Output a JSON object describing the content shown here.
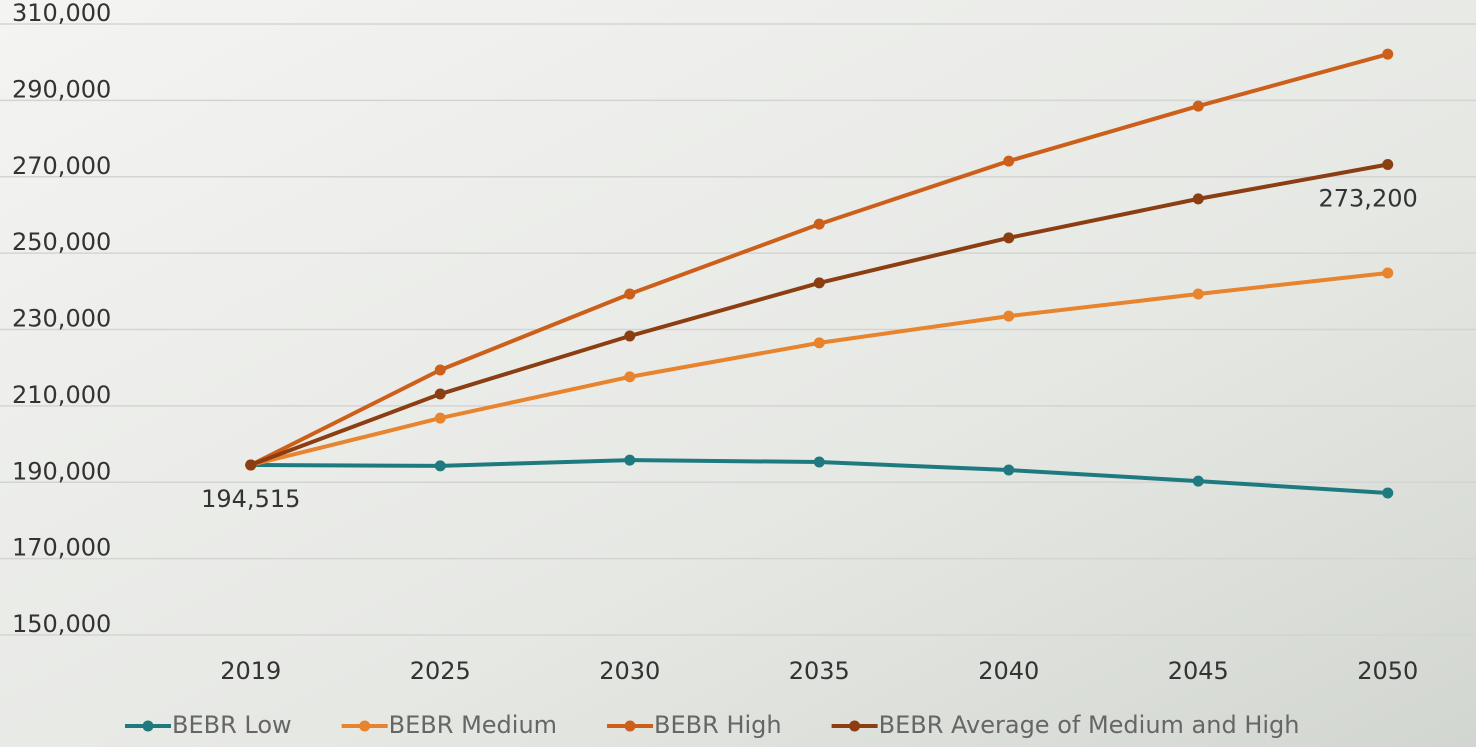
{
  "chart_data": {
    "type": "line",
    "categories": [
      "2019",
      "2025",
      "2030",
      "2035",
      "2040",
      "2045",
      "2050"
    ],
    "series": [
      {
        "name": "BEBR Low",
        "color": "#1f7a80",
        "values": [
          194515,
          194300,
          195800,
          195300,
          193200,
          190300,
          187200
        ]
      },
      {
        "name": "BEBR Medium",
        "color": "#e8832e",
        "values": [
          194515,
          206800,
          217600,
          226500,
          233500,
          239300,
          244800
        ]
      },
      {
        "name": "BEBR High",
        "color": "#cc5f1a",
        "values": [
          194515,
          219400,
          239300,
          257600,
          274100,
          288500,
          302100
        ]
      },
      {
        "name": "BEBR Average of Medium and High",
        "color": "#8b3e12",
        "values": [
          194515,
          213100,
          228300,
          242200,
          254000,
          264200,
          273200
        ],
        "value_labels": [
          "194,515",
          null,
          null,
          null,
          null,
          null,
          "273,200"
        ]
      }
    ],
    "ylim": [
      150000,
      310000
    ],
    "yticks": [
      {
        "value": 150000,
        "label": "150,000"
      },
      {
        "value": 170000,
        "label": "170,000"
      },
      {
        "value": 190000,
        "label": "190,000"
      },
      {
        "value": 210000,
        "label": "210,000"
      },
      {
        "value": 230000,
        "label": "230,000"
      },
      {
        "value": 250000,
        "label": "250,000"
      },
      {
        "value": 270000,
        "label": "270,000"
      },
      {
        "value": 290000,
        "label": "290,000"
      },
      {
        "value": 310000,
        "label": "310,000"
      }
    ],
    "grid": true,
    "legend": "bottom"
  }
}
